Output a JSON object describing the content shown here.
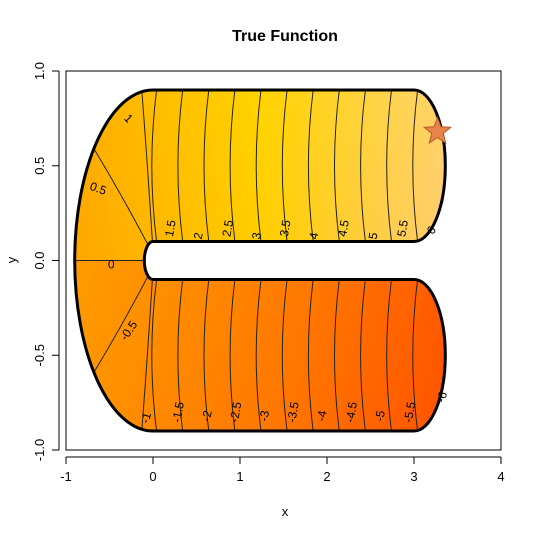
{
  "chart_data": {
    "type": "contour",
    "title": "True Function",
    "xlabel": "x",
    "ylabel": "y",
    "xlim": [
      -1,
      4
    ],
    "ylim": [
      -1,
      1
    ],
    "x_ticks": [
      {
        "value": -1,
        "label": "-1"
      },
      {
        "value": 0,
        "label": "0"
      },
      {
        "value": 1,
        "label": "1"
      },
      {
        "value": 2,
        "label": "2"
      },
      {
        "value": 3,
        "label": "3"
      },
      {
        "value": 4,
        "label": "4"
      }
    ],
    "y_ticks": [
      {
        "value": -1,
        "label": "-1.0"
      },
      {
        "value": -0.5,
        "label": "-0.5"
      },
      {
        "value": 0,
        "label": "0.0"
      },
      {
        "value": 0.5,
        "label": "0.5"
      },
      {
        "value": 1,
        "label": "1.0"
      }
    ],
    "domain": {
      "shape": "horseshoe",
      "arm_right_end_x": 3,
      "outer_radius": 0.9,
      "inner_radius": 0.1
    },
    "contour_levels": [
      -6,
      -5.5,
      -5,
      -4.5,
      -4,
      -3.5,
      -3,
      -2.5,
      -2,
      -1.5,
      -1,
      -0.5,
      0,
      0.5,
      1,
      1.5,
      2,
      2.5,
      3,
      3.5,
      4,
      4.5,
      5,
      5.5,
      6
    ],
    "contour_labels": [
      {
        "text": "1",
        "x": -0.28,
        "y": 0.75,
        "rot": 45
      },
      {
        "text": "0.5",
        "x": -0.63,
        "y": 0.38,
        "rot": 20
      },
      {
        "text": "0",
        "x": -0.48,
        "y": -0.02,
        "rot": 0
      },
      {
        "text": "-0.5",
        "x": -0.28,
        "y": -0.37,
        "rot": -55
      },
      {
        "text": "-1",
        "x": -0.08,
        "y": -0.83,
        "rot": -75
      },
      {
        "text": "1.5",
        "x": 0.2,
        "y": 0.17,
        "rot": -80
      },
      {
        "text": "2",
        "x": 0.52,
        "y": 0.13,
        "rot": -80
      },
      {
        "text": "2.5",
        "x": 0.86,
        "y": 0.17,
        "rot": -80
      },
      {
        "text": "3",
        "x": 1.19,
        "y": 0.13,
        "rot": -80
      },
      {
        "text": "3.5",
        "x": 1.52,
        "y": 0.17,
        "rot": -80
      },
      {
        "text": "4",
        "x": 1.85,
        "y": 0.13,
        "rot": -80
      },
      {
        "text": "4.5",
        "x": 2.19,
        "y": 0.17,
        "rot": -80
      },
      {
        "text": "5",
        "x": 2.53,
        "y": 0.13,
        "rot": -80
      },
      {
        "text": "5.5",
        "x": 2.87,
        "y": 0.17,
        "rot": -80
      },
      {
        "text": "6",
        "x": 3.2,
        "y": 0.16,
        "rot": -55
      },
      {
        "text": "-1.5",
        "x": 0.29,
        "y": -0.8,
        "rot": -80
      },
      {
        "text": "-2",
        "x": 0.62,
        "y": -0.82,
        "rot": -80
      },
      {
        "text": "-2.5",
        "x": 0.95,
        "y": -0.8,
        "rot": -80
      },
      {
        "text": "-3",
        "x": 1.28,
        "y": -0.82,
        "rot": -80
      },
      {
        "text": "-3.5",
        "x": 1.61,
        "y": -0.8,
        "rot": -80
      },
      {
        "text": "-4",
        "x": 1.94,
        "y": -0.82,
        "rot": -80
      },
      {
        "text": "-4.5",
        "x": 2.28,
        "y": -0.8,
        "rot": -80
      },
      {
        "text": "-5",
        "x": 2.61,
        "y": -0.82,
        "rot": -80
      },
      {
        "text": "-5.5",
        "x": 2.95,
        "y": -0.8,
        "rot": -80
      },
      {
        "text": "-6",
        "x": 3.32,
        "y": -0.72,
        "rot": -70
      }
    ],
    "marker": {
      "shape": "star",
      "x": 3.27,
      "y": 0.68,
      "color": "#e8834a"
    },
    "colors": {
      "low": "#ff0000",
      "mid": "#ffa500",
      "high_yellow": "#ffff00",
      "top": "#ffffff"
    }
  }
}
